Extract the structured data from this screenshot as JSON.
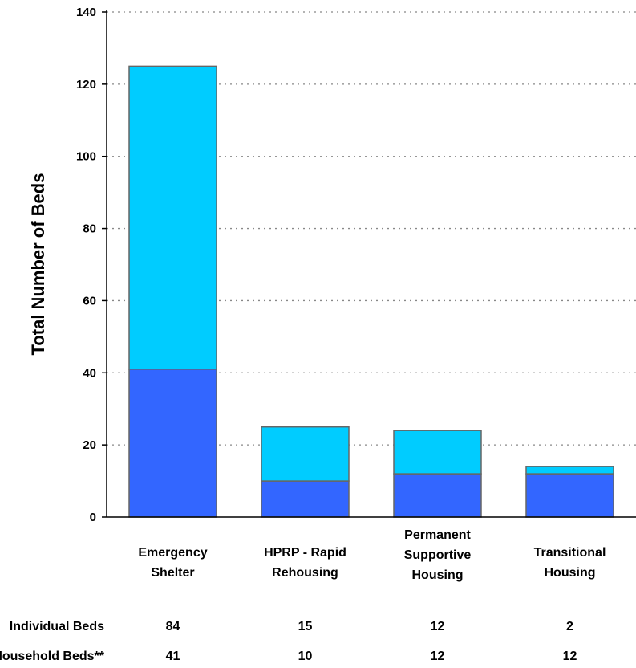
{
  "chart_data": {
    "type": "bar",
    "stacked": true,
    "categories": [
      [
        "Emergency",
        "Shelter"
      ],
      [
        "HPRP - Rapid",
        "Rehousing"
      ],
      [
        "Permanent",
        "Supportive",
        "Housing"
      ],
      [
        "Transitional",
        "Housing"
      ]
    ],
    "series": [
      {
        "name": "Household Beds**",
        "values": [
          41,
          10,
          12,
          12
        ],
        "color": "#3366ff"
      },
      {
        "name": "Individual Beds",
        "values": [
          84,
          15,
          12,
          2
        ],
        "color": "#00ccff"
      }
    ],
    "ylabel": "Total Number of Beds",
    "ylim": [
      0,
      140
    ],
    "yticks": [
      0,
      20,
      40,
      60,
      80,
      100,
      120,
      140
    ],
    "grid": true,
    "grid_style": "dotted",
    "data_table": [
      {
        "label": "Individual Beds",
        "values": [
          "84",
          "15",
          "12",
          "2"
        ]
      },
      {
        "label": "Household Beds**",
        "values": [
          "41",
          "10",
          "12",
          "12"
        ]
      }
    ]
  }
}
